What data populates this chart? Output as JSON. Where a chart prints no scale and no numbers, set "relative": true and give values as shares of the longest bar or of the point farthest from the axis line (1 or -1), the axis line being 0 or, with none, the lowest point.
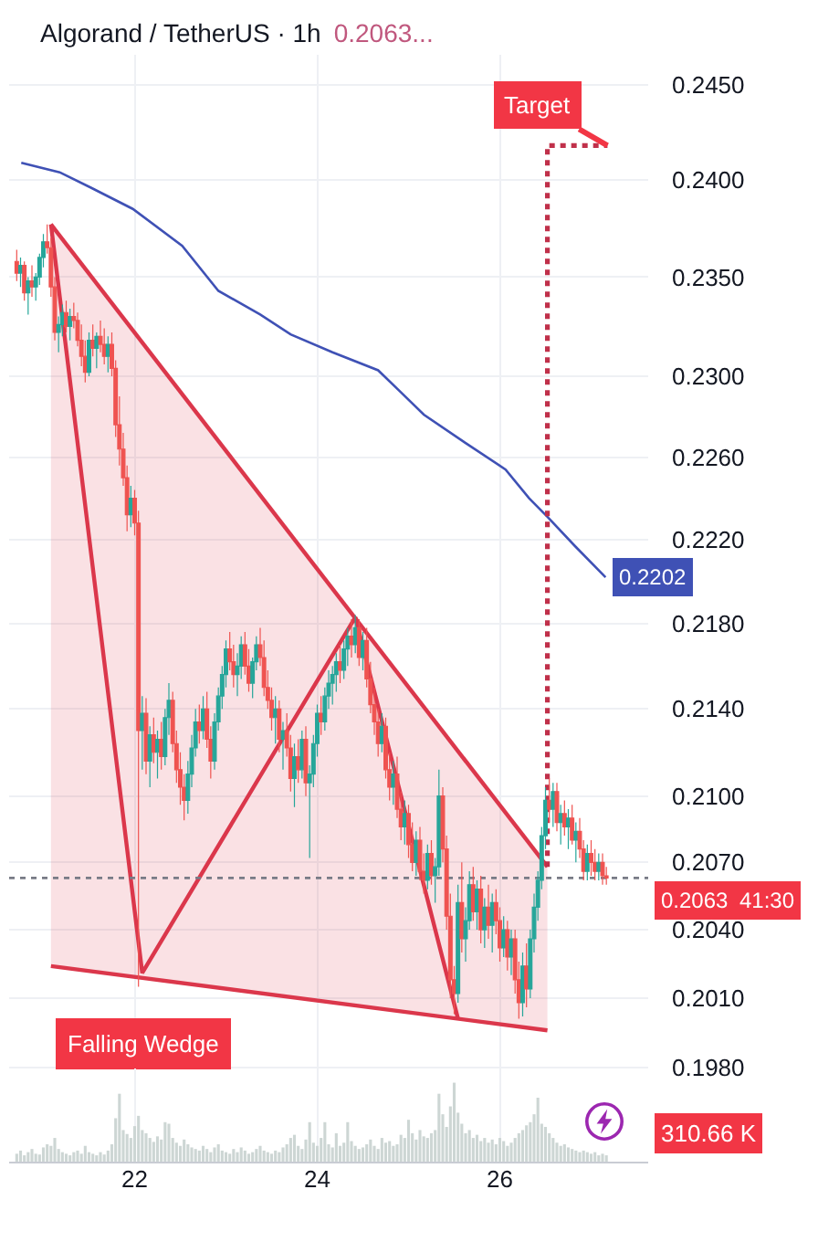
{
  "chart_data": [
    {
      "type": "candlestick",
      "title": "Algorand / TetherUS · 1h",
      "subtitle": "0.2063...",
      "x": [
        20.7083,
        20.75,
        20.7917,
        20.8333,
        20.875,
        20.9167,
        20.9583,
        21,
        21.0417,
        21.0833,
        21.125,
        21.1667,
        21.2083,
        21.25,
        21.2917,
        21.3333,
        21.375,
        21.4167,
        21.4583,
        21.5,
        21.5417,
        21.5833,
        21.625,
        21.6667,
        21.7083,
        21.75,
        21.7917,
        21.8333,
        21.875,
        21.9167,
        21.9583,
        22,
        22.0417,
        22.0833,
        22.125,
        22.1667,
        22.2083,
        22.25,
        22.2917,
        22.3333,
        22.375,
        22.4167,
        22.4583,
        22.5,
        22.5417,
        22.5833,
        22.625,
        22.6667,
        22.7083,
        22.75,
        22.7917,
        22.8333,
        22.875,
        22.9167,
        22.9583,
        23,
        23.0417,
        23.0833,
        23.125,
        23.1667,
        23.2083,
        23.25,
        23.2917,
        23.3333,
        23.375,
        23.4167,
        23.4583,
        23.5,
        23.5417,
        23.5833,
        23.625,
        23.6667,
        23.7083,
        23.75,
        23.7917,
        23.8333,
        23.875,
        23.9167,
        23.9583,
        24,
        24.0417,
        24.0833,
        24.125,
        24.1667,
        24.2083,
        24.25,
        24.2917,
        24.3333,
        24.375,
        24.4167,
        24.4583,
        24.5,
        24.5417,
        24.5833,
        24.625,
        24.6667,
        24.7083,
        24.75,
        24.7917,
        24.8333,
        24.875,
        24.9167,
        24.9583,
        25,
        25.0417,
        25.0833,
        25.125,
        25.1667,
        25.2083,
        25.25,
        25.2917,
        25.3333,
        25.375,
        25.4167,
        25.4583,
        25.5,
        25.5417,
        25.5833,
        25.625,
        25.6667,
        25.7083,
        25.75,
        25.7917,
        25.8333,
        25.875,
        25.9167,
        25.9583,
        26,
        26.0417,
        26.0833,
        26.125,
        26.1667,
        26.2083,
        26.25,
        26.2917,
        26.3333,
        26.375,
        26.4167,
        26.4583,
        26.5,
        26.5417,
        26.5833,
        26.625,
        26.6667,
        26.7083,
        26.75,
        26.7917,
        26.8333,
        26.875,
        26.9167,
        26.9583,
        27,
        27.0417,
        27.0833,
        27.125,
        27.1667
      ],
      "ohlc": [
        [
          0.2358,
          0.2364,
          0.2348,
          0.2352
        ],
        [
          0.2352,
          0.236,
          0.2345,
          0.2356
        ],
        [
          0.2356,
          0.2358,
          0.2338,
          0.2342
        ],
        [
          0.2342,
          0.235,
          0.2331,
          0.2348
        ],
        [
          0.2348,
          0.2356,
          0.234,
          0.2345
        ],
        [
          0.2345,
          0.2352,
          0.2338,
          0.235
        ],
        [
          0.235,
          0.2362,
          0.2346,
          0.236
        ],
        [
          0.236,
          0.2372,
          0.2355,
          0.2368
        ],
        [
          0.2368,
          0.2377,
          0.2362,
          0.2365
        ],
        [
          0.2365,
          0.237,
          0.234,
          0.2345
        ],
        [
          0.2345,
          0.235,
          0.2318,
          0.2322
        ],
        [
          0.2322,
          0.233,
          0.2312,
          0.2326
        ],
        [
          0.2326,
          0.2336,
          0.232,
          0.2332
        ],
        [
          0.2332,
          0.2338,
          0.2322,
          0.2325
        ],
        [
          0.2325,
          0.2334,
          0.2318,
          0.233
        ],
        [
          0.233,
          0.2337,
          0.2324,
          0.2328
        ],
        [
          0.2328,
          0.2332,
          0.2315,
          0.2318
        ],
        [
          0.2318,
          0.2326,
          0.2305,
          0.231
        ],
        [
          0.231,
          0.2318,
          0.2297,
          0.2302
        ],
        [
          0.2302,
          0.2322,
          0.23,
          0.2318
        ],
        [
          0.2318,
          0.2326,
          0.231,
          0.2314
        ],
        [
          0.2314,
          0.2322,
          0.2304,
          0.232
        ],
        [
          0.232,
          0.2328,
          0.2312,
          0.2316
        ],
        [
          0.2316,
          0.2324,
          0.2306,
          0.231
        ],
        [
          0.231,
          0.232,
          0.2302,
          0.2316
        ],
        [
          0.2316,
          0.2322,
          0.23,
          0.2304
        ],
        [
          0.2304,
          0.2308,
          0.227,
          0.2276
        ],
        [
          0.2276,
          0.229,
          0.2256,
          0.2264
        ],
        [
          0.2264,
          0.2272,
          0.2246,
          0.225
        ],
        [
          0.225,
          0.2256,
          0.2224,
          0.2232
        ],
        [
          0.2232,
          0.2246,
          0.2226,
          0.224
        ],
        [
          0.224,
          0.2244,
          0.2222,
          0.2228
        ],
        [
          0.2228,
          0.2234,
          0.2015,
          0.213
        ],
        [
          0.213,
          0.2146,
          0.2112,
          0.2138
        ],
        [
          0.2138,
          0.2145,
          0.211,
          0.2116
        ],
        [
          0.2116,
          0.2132,
          0.2104,
          0.2128
        ],
        [
          0.2128,
          0.2136,
          0.2115,
          0.212
        ],
        [
          0.212,
          0.213,
          0.2108,
          0.2126
        ],
        [
          0.2126,
          0.2134,
          0.2112,
          0.2118
        ],
        [
          0.2118,
          0.214,
          0.2114,
          0.2136
        ],
        [
          0.2136,
          0.2152,
          0.2128,
          0.2144
        ],
        [
          0.2144,
          0.2148,
          0.212,
          0.2124
        ],
        [
          0.2124,
          0.213,
          0.2106,
          0.2112
        ],
        [
          0.2112,
          0.212,
          0.2096,
          0.2104
        ],
        [
          0.2104,
          0.211,
          0.2089,
          0.2098
        ],
        [
          0.2098,
          0.2116,
          0.2092,
          0.211
        ],
        [
          0.211,
          0.2128,
          0.2104,
          0.2122
        ],
        [
          0.2122,
          0.214,
          0.2118,
          0.2134
        ],
        [
          0.2134,
          0.2142,
          0.2124,
          0.213
        ],
        [
          0.213,
          0.2146,
          0.2126,
          0.214
        ],
        [
          0.214,
          0.2148,
          0.2122,
          0.2126
        ],
        [
          0.2126,
          0.2132,
          0.2108,
          0.2116
        ],
        [
          0.2116,
          0.2138,
          0.2112,
          0.2134
        ],
        [
          0.2134,
          0.215,
          0.213,
          0.2146
        ],
        [
          0.2146,
          0.216,
          0.214,
          0.2156
        ],
        [
          0.2156,
          0.2172,
          0.215,
          0.2168
        ],
        [
          0.2168,
          0.2176,
          0.2158,
          0.2162
        ],
        [
          0.2162,
          0.217,
          0.215,
          0.2156
        ],
        [
          0.2156,
          0.2166,
          0.2146,
          0.216
        ],
        [
          0.216,
          0.2174,
          0.2154,
          0.217
        ],
        [
          0.217,
          0.2176,
          0.2156,
          0.216
        ],
        [
          0.216,
          0.2168,
          0.2148,
          0.2152
        ],
        [
          0.2152,
          0.2164,
          0.2145,
          0.2162
        ],
        [
          0.2162,
          0.2174,
          0.2158,
          0.217
        ],
        [
          0.217,
          0.2178,
          0.216,
          0.2164
        ],
        [
          0.2164,
          0.2172,
          0.2146,
          0.215
        ],
        [
          0.215,
          0.2158,
          0.214,
          0.2144
        ],
        [
          0.2144,
          0.215,
          0.213,
          0.2136
        ],
        [
          0.2136,
          0.2146,
          0.2124,
          0.214
        ],
        [
          0.214,
          0.2144,
          0.212,
          0.2126
        ],
        [
          0.2126,
          0.2134,
          0.2112,
          0.213
        ],
        [
          0.213,
          0.2138,
          0.2118,
          0.2122
        ],
        [
          0.2122,
          0.2128,
          0.2102,
          0.2108
        ],
        [
          0.2108,
          0.2124,
          0.2095,
          0.2118
        ],
        [
          0.2118,
          0.2126,
          0.2106,
          0.2112
        ],
        [
          0.2112,
          0.213,
          0.2108,
          0.2126
        ],
        [
          0.2126,
          0.2132,
          0.21,
          0.2106
        ],
        [
          0.2106,
          0.2114,
          0.2072,
          0.211
        ],
        [
          0.211,
          0.2128,
          0.2104,
          0.2124
        ],
        [
          0.2124,
          0.2142,
          0.2118,
          0.2138
        ],
        [
          0.2138,
          0.2146,
          0.2128,
          0.2134
        ],
        [
          0.2134,
          0.215,
          0.213,
          0.2146
        ],
        [
          0.2146,
          0.2158,
          0.214,
          0.2152
        ],
        [
          0.2152,
          0.216,
          0.2142,
          0.2156
        ],
        [
          0.2156,
          0.2166,
          0.2148,
          0.2162
        ],
        [
          0.2162,
          0.217,
          0.2152,
          0.2158
        ],
        [
          0.2158,
          0.2172,
          0.2154,
          0.2168
        ],
        [
          0.2168,
          0.2178,
          0.216,
          0.2174
        ],
        [
          0.2174,
          0.2182,
          0.2164,
          0.217
        ],
        [
          0.217,
          0.2184,
          0.2166,
          0.2178
        ],
        [
          0.2178,
          0.2182,
          0.216,
          0.2164
        ],
        [
          0.2164,
          0.2176,
          0.2158,
          0.2172
        ],
        [
          0.2172,
          0.2178,
          0.215,
          0.2154
        ],
        [
          0.2154,
          0.2162,
          0.2138,
          0.2142
        ],
        [
          0.2142,
          0.215,
          0.2128,
          0.2134
        ],
        [
          0.2134,
          0.214,
          0.2118,
          0.2124
        ],
        [
          0.2124,
          0.2138,
          0.212,
          0.2132
        ],
        [
          0.2132,
          0.2136,
          0.2108,
          0.2112
        ],
        [
          0.2112,
          0.212,
          0.2098,
          0.2104
        ],
        [
          0.2104,
          0.2116,
          0.2096,
          0.211
        ],
        [
          0.211,
          0.2118,
          0.209,
          0.2094
        ],
        [
          0.2094,
          0.2102,
          0.208,
          0.2086
        ],
        [
          0.2086,
          0.2098,
          0.2078,
          0.2092
        ],
        [
          0.2092,
          0.2096,
          0.2072,
          0.2078
        ],
        [
          0.2078,
          0.2088,
          0.2066,
          0.207
        ],
        [
          0.207,
          0.2084,
          0.2064,
          0.208
        ],
        [
          0.208,
          0.2086,
          0.2062,
          0.2066
        ],
        [
          0.2066,
          0.2074,
          0.2056,
          0.2062
        ],
        [
          0.2062,
          0.2078,
          0.2058,
          0.2074
        ],
        [
          0.2074,
          0.208,
          0.206,
          0.2064
        ],
        [
          0.2064,
          0.2072,
          0.2052,
          0.2068
        ],
        [
          0.2068,
          0.2112,
          0.2064,
          0.21
        ],
        [
          0.21,
          0.2104,
          0.207,
          0.2076
        ],
        [
          0.2076,
          0.2082,
          0.204,
          0.2046
        ],
        [
          0.2046,
          0.2056,
          0.201,
          0.2018
        ],
        [
          0.2018,
          0.2024,
          0.2003,
          0.2012
        ],
        [
          0.2012,
          0.206,
          0.2008,
          0.2052
        ],
        [
          0.2052,
          0.207,
          0.203,
          0.2036
        ],
        [
          0.2036,
          0.205,
          0.2026,
          0.2044
        ],
        [
          0.2044,
          0.2066,
          0.204,
          0.206
        ],
        [
          0.206,
          0.2068,
          0.2044,
          0.2048
        ],
        [
          0.2048,
          0.2062,
          0.204,
          0.2058
        ],
        [
          0.2058,
          0.2064,
          0.2034,
          0.204
        ],
        [
          0.204,
          0.2054,
          0.2032,
          0.205
        ],
        [
          0.205,
          0.206,
          0.2036,
          0.2042
        ],
        [
          0.2042,
          0.2056,
          0.203,
          0.2052
        ],
        [
          0.2052,
          0.2058,
          0.2038,
          0.2044
        ],
        [
          0.2044,
          0.205,
          0.2026,
          0.2032
        ],
        [
          0.2032,
          0.2046,
          0.2028,
          0.204
        ],
        [
          0.204,
          0.2044,
          0.2022,
          0.2028
        ],
        [
          0.2028,
          0.204,
          0.202,
          0.2036
        ],
        [
          0.2036,
          0.204,
          0.2012,
          0.2018
        ],
        [
          0.2018,
          0.2026,
          0.2001,
          0.2008
        ],
        [
          0.2008,
          0.203,
          0.2002,
          0.2024
        ],
        [
          0.2024,
          0.2034,
          0.2006,
          0.2014
        ],
        [
          0.2014,
          0.204,
          0.201,
          0.2036
        ],
        [
          0.2036,
          0.2056,
          0.203,
          0.205
        ],
        [
          0.205,
          0.2066,
          0.2044,
          0.2062
        ],
        [
          0.2062,
          0.2086,
          0.2058,
          0.2082
        ],
        [
          0.2082,
          0.2104,
          0.2076,
          0.2098
        ],
        [
          0.2098,
          0.2108,
          0.2088,
          0.2094
        ],
        [
          0.2094,
          0.2106,
          0.2086,
          0.2102
        ],
        [
          0.2102,
          0.2106,
          0.2084,
          0.2088
        ],
        [
          0.2088,
          0.2096,
          0.2078,
          0.2092
        ],
        [
          0.2092,
          0.2098,
          0.2082,
          0.2086
        ],
        [
          0.2086,
          0.2094,
          0.2076,
          0.209
        ],
        [
          0.209,
          0.2096,
          0.2078,
          0.208
        ],
        [
          0.208,
          0.2088,
          0.207,
          0.2084
        ],
        [
          0.2084,
          0.209,
          0.2072,
          0.2076
        ],
        [
          0.2076,
          0.208,
          0.2062,
          0.2066
        ],
        [
          0.2066,
          0.2078,
          0.2062,
          0.2074
        ],
        [
          0.2074,
          0.208,
          0.2064,
          0.207
        ],
        [
          0.207,
          0.2076,
          0.2062,
          0.2066
        ],
        [
          0.2066,
          0.2074,
          0.2062,
          0.207
        ],
        [
          0.207,
          0.2074,
          0.206,
          0.2064
        ],
        [
          0.2064,
          0.2068,
          0.206,
          0.2063
        ]
      ],
      "series": [
        {
          "type": "line",
          "color": "#3f51b5",
          "x": [
            20.758,
            21.179,
            21.521,
            21.979,
            22.521,
            22.917,
            23.375,
            23.708,
            24.167,
            24.667,
            24.917,
            25.167,
            25.625,
            26.063,
            26.321,
            26.521,
            26.821,
            27.158
          ],
          "values": [
            0.2409,
            0.2404,
            0.2396,
            0.2385,
            0.2366,
            0.2343,
            0.2331,
            0.2321,
            0.2312,
            0.2303,
            0.2292,
            0.2281,
            0.2267,
            0.2254,
            0.224,
            0.2231,
            0.2217,
            0.2202
          ],
          "value_labels": [
            null,
            null,
            null,
            null,
            null,
            null,
            null,
            null,
            null,
            null,
            null,
            null,
            null,
            null,
            null,
            null,
            null,
            "0.2202"
          ]
        },
        {
          "type": "line",
          "color": "#db374b",
          "x": [
            21.083,
            26.521
          ],
          "values": [
            0.2377,
            0.2068
          ],
          "lower": [
            0.2024,
            0.1996
          ],
          "upper": [
            0.2377,
            0.2068
          ]
        },
        {
          "type": "line",
          "color": "#db374b",
          "x": [
            21.083,
            26.521
          ],
          "values": [
            0.2024,
            0.1996
          ]
        },
        {
          "type": "line",
          "color": "#db374b",
          "x": [
            21.083,
            22.083,
            24.417,
            25.542
          ],
          "values": [
            0.2377,
            0.2021,
            0.2183,
            0.2001
          ]
        },
        {
          "type": "line",
          "color": "#c0304a",
          "line_style": "dotted",
          "x": [
            26.521,
            26.521,
            27.179
          ],
          "values": [
            0.2068,
            0.2418,
            0.2418
          ]
        }
      ],
      "xlim": [
        20.625,
        27.625
      ],
      "xticks": [
        22,
        24,
        26
      ],
      "ylim": [
        0.194,
        0.2466
      ],
      "yticks": [
        {
          "value": 0.245,
          "label": "0.2450"
        },
        {
          "value": 0.24,
          "label": "0.2400"
        },
        {
          "value": 0.235,
          "label": "0.2350"
        },
        {
          "value": 0.23,
          "label": "0.2300"
        },
        {
          "value": 0.226,
          "label": "0.2260"
        },
        {
          "value": 0.222,
          "label": "0.2220"
        },
        {
          "value": 0.218,
          "label": "0.2180"
        },
        {
          "value": 0.214,
          "label": "0.2140"
        },
        {
          "value": 0.21,
          "label": "0.2100"
        },
        {
          "value": 0.207,
          "label": "0.2070"
        },
        {
          "value": 0.204,
          "label": "0.2040"
        },
        {
          "value": 0.201,
          "label": "0.2010"
        },
        {
          "value": 0.198,
          "label": "0.1980"
        }
      ],
      "log": true,
      "grid": true,
      "ref_lines": [
        {
          "axis": "y",
          "value": 0.2063,
          "label": "0.2063",
          "color": "#787b86",
          "line_style": "dotted"
        }
      ],
      "annotations": [
        {
          "text": "Target",
          "x": 27.179,
          "y": 0.2418
        },
        "Falling Wedge",
        "41:30"
      ]
    },
    {
      "type": "bar",
      "x": [
        20.7083,
        20.75,
        20.7917,
        20.8333,
        20.875,
        20.9167,
        20.9583,
        21,
        21.0417,
        21.0833,
        21.125,
        21.1667,
        21.2083,
        21.25,
        21.2917,
        21.3333,
        21.375,
        21.4167,
        21.4583,
        21.5,
        21.5417,
        21.5833,
        21.625,
        21.6667,
        21.7083,
        21.75,
        21.7917,
        21.8333,
        21.875,
        21.9167,
        21.9583,
        22,
        22.0417,
        22.0833,
        22.125,
        22.1667,
        22.2083,
        22.25,
        22.2917,
        22.3333,
        22.375,
        22.4167,
        22.4583,
        22.5,
        22.5417,
        22.5833,
        22.625,
        22.6667,
        22.7083,
        22.75,
        22.7917,
        22.8333,
        22.875,
        22.9167,
        22.9583,
        23,
        23.0417,
        23.0833,
        23.125,
        23.1667,
        23.2083,
        23.25,
        23.2917,
        23.3333,
        23.375,
        23.4167,
        23.4583,
        23.5,
        23.5417,
        23.5833,
        23.625,
        23.6667,
        23.7083,
        23.75,
        23.7917,
        23.8333,
        23.875,
        23.9167,
        23.9583,
        24,
        24.0417,
        24.0833,
        24.125,
        24.1667,
        24.2083,
        24.25,
        24.2917,
        24.3333,
        24.375,
        24.4167,
        24.4583,
        24.5,
        24.5417,
        24.5833,
        24.625,
        24.6667,
        24.7083,
        24.75,
        24.7917,
        24.8333,
        24.875,
        24.9167,
        24.9583,
        25,
        25.0417,
        25.0833,
        25.125,
        25.1667,
        25.2083,
        25.25,
        25.2917,
        25.3333,
        25.375,
        25.4167,
        25.4583,
        25.5,
        25.5417,
        25.5833,
        25.625,
        25.6667,
        25.7083,
        25.75,
        25.7917,
        25.8333,
        25.875,
        25.9167,
        25.9583,
        26,
        26.0417,
        26.0833,
        26.125,
        26.1667,
        26.2083,
        26.25,
        26.2917,
        26.3333,
        26.375,
        26.4167,
        26.4583,
        26.5,
        26.5417,
        26.5833,
        26.625,
        26.6667,
        26.7083,
        26.75,
        26.7917,
        26.8333,
        26.875,
        26.9167,
        26.9583,
        27,
        27.0417,
        27.0833,
        27.125,
        27.1667
      ],
      "values": [
        0.1,
        0.14,
        0.08,
        0.12,
        0.16,
        0.1,
        0.09,
        0.18,
        0.22,
        0.2,
        0.3,
        0.16,
        0.12,
        0.1,
        0.08,
        0.12,
        0.14,
        0.1,
        0.2,
        0.12,
        0.1,
        0.08,
        0.12,
        0.09,
        0.14,
        0.22,
        0.55,
        0.86,
        0.4,
        0.35,
        0.3,
        0.45,
        0.58,
        0.4,
        0.36,
        0.3,
        0.25,
        0.32,
        0.28,
        0.5,
        0.48,
        0.3,
        0.24,
        0.2,
        0.28,
        0.22,
        0.18,
        0.16,
        0.14,
        0.2,
        0.16,
        0.12,
        0.18,
        0.22,
        0.14,
        0.12,
        0.1,
        0.16,
        0.12,
        0.18,
        0.14,
        0.1,
        0.12,
        0.16,
        0.2,
        0.14,
        0.12,
        0.1,
        0.14,
        0.12,
        0.18,
        0.22,
        0.3,
        0.34,
        0.2,
        0.16,
        0.28,
        0.5,
        0.24,
        0.2,
        0.3,
        0.5,
        0.22,
        0.18,
        0.36,
        0.2,
        0.24,
        0.5,
        0.26,
        0.2,
        0.16,
        0.18,
        0.22,
        0.28,
        0.2,
        0.16,
        0.3,
        0.24,
        0.26,
        0.2,
        0.22,
        0.34,
        0.3,
        0.53,
        0.36,
        0.28,
        0.4,
        0.32,
        0.3,
        0.36,
        0.4,
        0.86,
        0.6,
        0.44,
        0.7,
        1,
        0.62,
        0.48,
        0.36,
        0.4,
        0.3,
        0.34,
        0.26,
        0.3,
        0.24,
        0.28,
        0.22,
        0.3,
        0.26,
        0.2,
        0.24,
        0.3,
        0.36,
        0.4,
        0.46,
        0.5,
        0.6,
        0.81,
        0.48,
        0.44,
        0.36,
        0.3,
        0.24,
        0.2,
        0.22,
        0.18,
        0.16,
        0.14,
        0.12,
        0.14,
        0.12,
        0.1,
        0.12,
        0.08,
        0.1,
        0.08
      ],
      "color": "#cdd6d4",
      "relative": true,
      "xlim": [
        20.625,
        27.625
      ],
      "xticks": [
        22,
        24,
        26
      ],
      "grid": "x",
      "tick_labels": false,
      "annotations": [
        "310.66 K"
      ]
    }
  ]
}
